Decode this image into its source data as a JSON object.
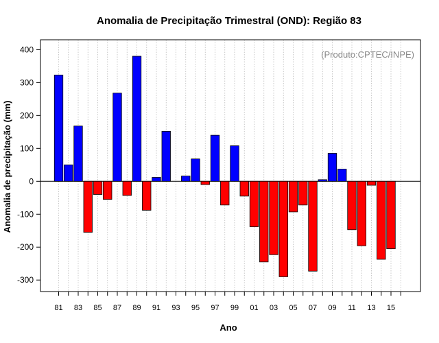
{
  "chart_data": {
    "type": "bar",
    "title": "Anomalia de Precipitação Trimestral (OND): Região 83",
    "xlabel": "Ano",
    "ylabel": "Anomalia de precipitação (mm)",
    "credit": "(Produto:CPTEC/INPE)",
    "ylim": [
      -335,
      430
    ],
    "yticks": [
      -300,
      -200,
      -100,
      0,
      100,
      200,
      300,
      400
    ],
    "grid": "vertical-dotted",
    "categories": [
      "81",
      "82",
      "83",
      "84",
      "85",
      "86",
      "87",
      "88",
      "89",
      "90",
      "91",
      "92",
      "93",
      "94",
      "95",
      "96",
      "97",
      "98",
      "99",
      "00",
      "01",
      "02",
      "03",
      "04",
      "05",
      "06",
      "07",
      "08",
      "09",
      "10",
      "11",
      "12",
      "13",
      "14",
      "15",
      "16"
    ],
    "xtick_labels": [
      "81",
      "83",
      "85",
      "87",
      "89",
      "91",
      "93",
      "95",
      "97",
      "99",
      "01",
      "03",
      "05",
      "07",
      "09",
      "11",
      "13",
      "15"
    ],
    "values": [
      323,
      50,
      168,
      -155,
      -40,
      -55,
      268,
      -43,
      380,
      -88,
      12,
      152,
      0,
      16,
      68,
      -10,
      140,
      -72,
      108,
      -45,
      -138,
      -245,
      -223,
      -290,
      -93,
      -72,
      -273,
      5,
      85,
      37,
      -147,
      -196,
      -12,
      -237,
      -205,
      0
    ],
    "positive_color": "#0000ff",
    "negative_color": "#ff0000"
  }
}
